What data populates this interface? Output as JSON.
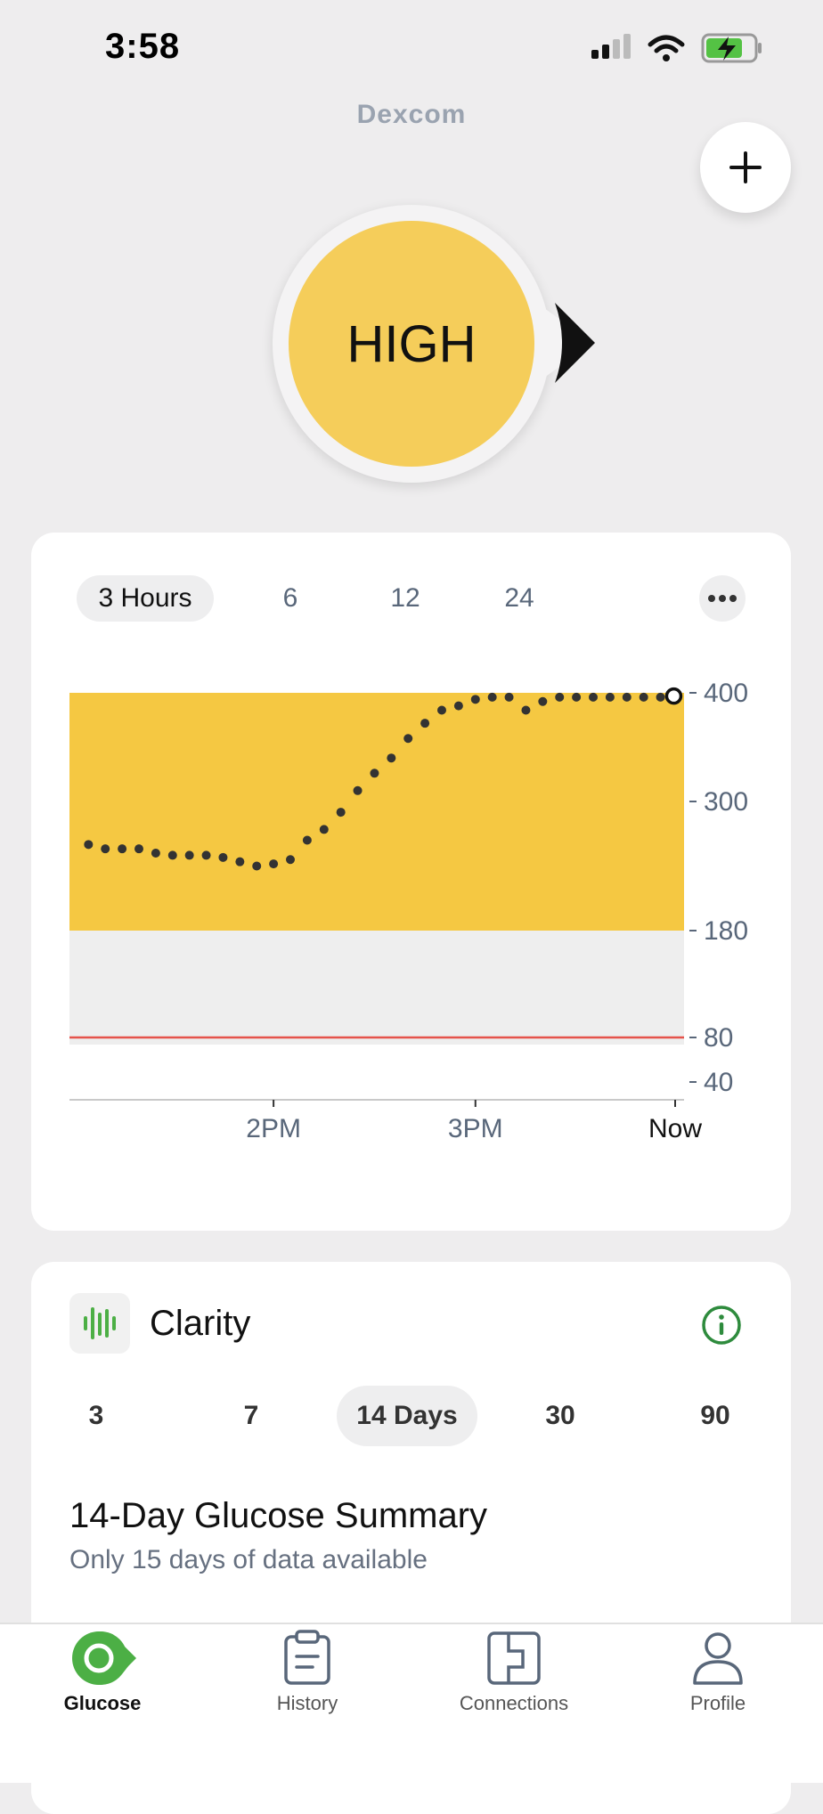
{
  "status_bar": {
    "time": "3:58"
  },
  "header": {
    "logo": "Dexcom"
  },
  "glucose": {
    "reading": "HIGH",
    "trend": "right-arrow-icon"
  },
  "chart": {
    "tabs": [
      "3 Hours",
      "6",
      "12",
      "24"
    ],
    "active_tab": "3 Hours",
    "more_icon": "ellipsis-icon"
  },
  "chart_data": {
    "type": "scatter",
    "title": "",
    "xlabel": "",
    "ylabel": "",
    "x_tick_labels": [
      "2PM",
      "3PM",
      "Now"
    ],
    "y_tick_labels": [
      "400",
      "300",
      "180",
      "80",
      "40"
    ],
    "high_threshold": 180,
    "low_threshold": 80,
    "ylim": [
      40,
      400
    ],
    "x_unit": "minutes before now",
    "series": [
      {
        "x": [
          -175,
          -170,
          -165,
          -160,
          -155,
          -150,
          -145,
          -140,
          -135,
          -130,
          -125,
          -120,
          -115,
          -110,
          -105,
          -100,
          -95,
          -90,
          -85,
          -80,
          -75,
          -70,
          -65,
          -60,
          -55,
          -50,
          -45,
          -40,
          -35,
          -30,
          -25,
          -20,
          -15,
          -10,
          -5,
          0
        ],
        "y": [
          260,
          256,
          256,
          256,
          252,
          250,
          250,
          250,
          248,
          244,
          240,
          242,
          246,
          264,
          274,
          290,
          310,
          326,
          340,
          358,
          372,
          384,
          388,
          394,
          396,
          396,
          384,
          392,
          396,
          396,
          396,
          396,
          396,
          396,
          396,
          397
        ]
      }
    ],
    "current_point": {
      "x": 0,
      "y": 397
    },
    "colors": {
      "high_band": "#f5c842",
      "target_band": "#eeeeee",
      "low_line": "#e5534b",
      "points": "#333333"
    }
  },
  "clarity": {
    "title": "Clarity",
    "day_tabs": [
      "3",
      "7",
      "14 Days",
      "30",
      "90"
    ],
    "active_day_tab": "14 Days",
    "summary_title": "14-Day Glucose Summary",
    "summary_subtitle": "Only 15 days of data available"
  },
  "nav": {
    "items": [
      {
        "label": "Glucose",
        "icon": "glucose-icon"
      },
      {
        "label": "History",
        "icon": "clipboard-icon"
      },
      {
        "label": "Connections",
        "icon": "connections-icon"
      },
      {
        "label": "Profile",
        "icon": "person-icon"
      }
    ]
  },
  "colors": {
    "brand_green": "#4caf45",
    "high_yellow": "#f5cd5a"
  }
}
